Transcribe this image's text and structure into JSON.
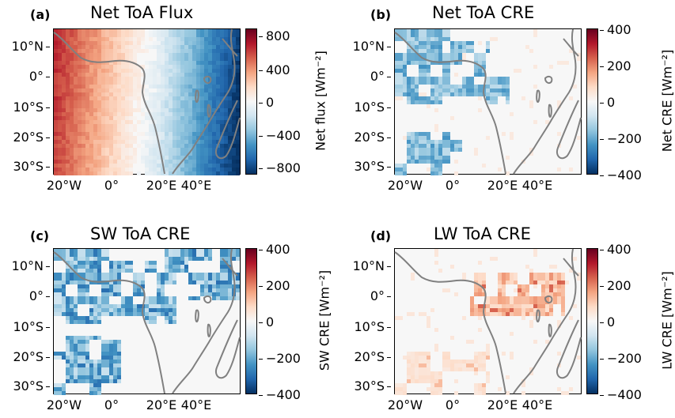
{
  "panels": [
    {
      "id": "a",
      "letter": "(a)",
      "title": "Net ToA Flux",
      "cbar_label": "Net flux [Wm⁻²]",
      "ticks": [
        "800",
        "400",
        "0",
        "−400",
        "−800"
      ],
      "range": [
        -900,
        900
      ],
      "field": "net_flux"
    },
    {
      "id": "b",
      "letter": "(b)",
      "title": "Net ToA CRE",
      "cbar_label": "Net CRE [Wm⁻²]",
      "ticks": [
        "400",
        "200",
        "0",
        "−200",
        "−400"
      ],
      "range": [
        -400,
        400
      ],
      "field": "net_cre"
    },
    {
      "id": "c",
      "letter": "(c)",
      "title": "SW ToA CRE",
      "cbar_label": "SW CRE [Wm⁻²]",
      "ticks": [
        "400",
        "200",
        "0",
        "−200",
        "−400"
      ],
      "range": [
        -400,
        400
      ],
      "field": "sw_cre"
    },
    {
      "id": "d",
      "letter": "(d)",
      "title": "LW ToA CRE",
      "cbar_label": "LW CRE [Wm⁻²]",
      "ticks": [
        "400",
        "200",
        "0",
        "−200",
        "−400"
      ],
      "range": [
        -400,
        400
      ],
      "field": "lw_cre"
    }
  ],
  "lat_ticks": [
    "10°N",
    "0°",
    "10°S",
    "20°S",
    "30°S"
  ],
  "lon_ticks": [
    "20°W",
    "0°",
    "20°E",
    "40°E"
  ],
  "colormap": {
    "low": "#053061",
    "mid": "#f7f7f7",
    "high": "#67001f"
  },
  "coastline_color": "#808080"
}
